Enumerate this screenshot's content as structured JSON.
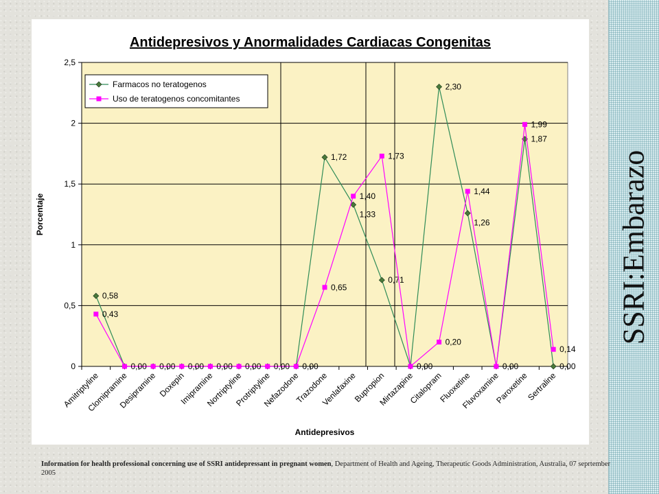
{
  "side_title": "SSRI:Embarazo",
  "source": {
    "bold": "Information for health professional concerning use of SSRI antidepressant in pregnant women",
    "rest": ", Department of Health and Ageing, Therapeutic Goods Administration, Australia, 07 seprtember 2005"
  },
  "chart_data": {
    "type": "line",
    "title": "Antidepresivos y Anormalidades Cardiacas Congenitas",
    "xlabel": "Antidepresivos",
    "ylabel": "Porcentaje",
    "ylim": [
      0,
      2.5
    ],
    "yticks": [
      "0",
      "0,5",
      "1",
      "1,5",
      "2",
      "2,5"
    ],
    "grid": true,
    "legend_position": "top-left",
    "categories": [
      "Amitriptyline",
      "Clomipramine",
      "Desipramine",
      "Doxepin",
      "Imipramine",
      "Nortriptyline",
      "Protriptyline",
      "Nefazodone",
      "Trazodone",
      "Venlafaxine",
      "Bupropion",
      "Mirtazapine",
      "Citalopram",
      "Fluoxetine",
      "Fluvoxamine",
      "Paroxetine",
      "Sertraline"
    ],
    "series": [
      {
        "name": "Farmacos no teratogenos",
        "color": "#2e8b57",
        "marker_color": "#4a7a3a",
        "marker": "diamond",
        "values": [
          0.58,
          0,
          0,
          0,
          0,
          0,
          0,
          0,
          1.72,
          1.33,
          0.71,
          0,
          2.3,
          1.26,
          0,
          1.87,
          0
        ],
        "labels": [
          "0,58",
          "",
          "",
          "",
          "",
          "",
          "",
          "",
          "1,72",
          "1,33",
          "0,71",
          "",
          "2,30",
          "1,26",
          "",
          "1,87",
          "0,00"
        ]
      },
      {
        "name": "Uso de teratogenos concomitantes",
        "color": "#ff00ff",
        "marker_color": "#ff00ff",
        "marker": "square",
        "values": [
          0.43,
          0,
          0,
          0,
          0,
          0,
          0,
          0,
          0.65,
          1.4,
          1.73,
          0,
          0.2,
          1.44,
          0,
          1.99,
          0.14
        ],
        "labels": [
          "0,43",
          "0,00",
          "0,00",
          "0,00",
          "0,00",
          "0,00",
          "0,00",
          "0,00",
          "0,65",
          "1,40",
          "1,73",
          "0,00",
          "0,20",
          "1,44",
          "0,00",
          "1,99",
          "0,14"
        ]
      }
    ]
  }
}
